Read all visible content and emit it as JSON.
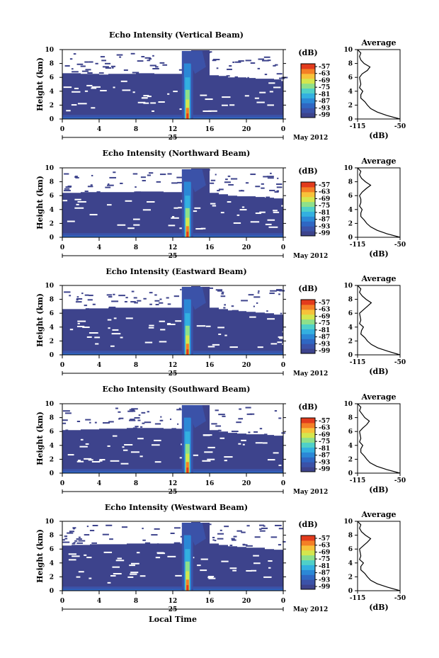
{
  "colors": {
    "background": "#3d438c",
    "scale": [
      "#3d438c",
      "#3b52a8",
      "#2f67c3",
      "#2b88d6",
      "#33b0e0",
      "#4fd0c8",
      "#8ee08a",
      "#d4e64e",
      "#f7c23a",
      "#f47f26",
      "#e23b1c"
    ]
  },
  "shared": {
    "xticks": [
      "0",
      "4",
      "8",
      "12",
      "16",
      "20",
      "0"
    ],
    "date_day": "25",
    "date_month": "May 2012",
    "xlabel": "Local Time",
    "ylabel": "Height (km)",
    "yticks": [
      "0",
      "2",
      "4",
      "6",
      "8",
      "10"
    ],
    "cbar_unit": "(dB)",
    "cbar_ticks": [
      "-57",
      "-63",
      "-69",
      "-75",
      "-81",
      "-87",
      "-93",
      "-99"
    ],
    "avg_title": "Average",
    "avg_xticks": [
      "-115",
      "-50"
    ],
    "avg_xlabel": "(dB)",
    "avg_yticks": [
      "0",
      "2",
      "4",
      "6",
      "8",
      "10"
    ]
  },
  "chart_data": [
    {
      "type": "heatmap",
      "title": "Echo Intensity (Vertical Beam)",
      "xlabel": "Local Time",
      "ylabel": "Height (km)",
      "xlim": [
        0,
        24
      ],
      "ylim": [
        0,
        10
      ],
      "colorbar": {
        "unit": "dB",
        "range": [
          -99,
          -57
        ]
      },
      "echo_top_km": [
        6.6,
        6.6,
        6.5,
        6.5,
        6.4,
        6.5,
        6.5,
        6.5,
        6.6,
        6.6,
        6.5,
        6.5,
        6.5,
        6.7,
        9.9,
        9.9,
        6.3,
        6.2,
        6.0,
        6.0,
        5.9,
        5.8,
        5.8,
        5.7
      ],
      "average_profile": {
        "xlim": [
          -115,
          -50
        ],
        "ylim": [
          0,
          10
        ],
        "height_km": [
          0,
          0.5,
          1,
          1.5,
          2,
          2.5,
          3,
          3.5,
          4,
          4.5,
          5,
          5.5,
          6,
          6.5,
          7,
          7.5,
          8,
          8.5,
          9,
          9.5,
          10
        ],
        "value_db": [
          -50,
          -70,
          -85,
          -95,
          -100,
          -104,
          -110,
          -110,
          -107,
          -112,
          -110,
          -111,
          -112,
          -108,
          -100,
          -96,
          -105,
          -110,
          -112,
          -110,
          -115
        ]
      }
    },
    {
      "type": "heatmap",
      "title": "Echo Intensity (Northward Beam)",
      "xlabel": "Local Time",
      "ylabel": "Height (km)",
      "xlim": [
        0,
        24
      ],
      "ylim": [
        0,
        10
      ],
      "colorbar": {
        "unit": "dB",
        "range": [
          -99,
          -57
        ]
      },
      "echo_top_km": [
        6.4,
        6.4,
        6.5,
        6.5,
        6.5,
        6.5,
        6.5,
        6.5,
        6.6,
        6.6,
        6.6,
        6.5,
        6.5,
        9.0,
        9.9,
        9.9,
        6.4,
        6.2,
        6.0,
        5.9,
        5.9,
        5.8,
        5.7,
        5.6
      ],
      "average_profile": {
        "xlim": [
          -115,
          -50
        ],
        "ylim": [
          0,
          10
        ],
        "height_km": [
          0,
          0.5,
          1,
          1.5,
          2,
          2.5,
          3,
          3.5,
          4,
          4.5,
          5,
          5.5,
          6,
          6.5,
          7,
          7.5,
          8,
          8.5,
          9,
          9.5,
          10
        ],
        "value_db": [
          -50,
          -70,
          -85,
          -95,
          -101,
          -105,
          -110,
          -110,
          -108,
          -112,
          -110,
          -110,
          -112,
          -108,
          -102,
          -95,
          -103,
          -109,
          -112,
          -110,
          -115
        ]
      }
    },
    {
      "type": "heatmap",
      "title": "Echo Intensity (Eastward Beam)",
      "xlabel": "Local Time",
      "ylabel": "Height (km)",
      "xlim": [
        0,
        24
      ],
      "ylim": [
        0,
        10
      ],
      "colorbar": {
        "unit": "dB",
        "range": [
          -99,
          -57
        ]
      },
      "echo_top_km": [
        6.6,
        6.6,
        6.6,
        6.7,
        6.7,
        6.8,
        6.8,
        6.8,
        6.8,
        6.8,
        6.8,
        6.8,
        6.8,
        9.5,
        9.9,
        9.8,
        6.8,
        6.6,
        6.4,
        6.3,
        6.2,
        6.1,
        6.0,
        5.8
      ],
      "average_profile": {
        "xlim": [
          -115,
          -50
        ],
        "ylim": [
          0,
          10
        ],
        "height_km": [
          0,
          0.5,
          1,
          1.5,
          2,
          2.5,
          3,
          3.5,
          4,
          4.5,
          5,
          5.5,
          6,
          6.5,
          7,
          7.5,
          8,
          8.5,
          9,
          9.5,
          10
        ],
        "value_db": [
          -50,
          -68,
          -84,
          -94,
          -100,
          -104,
          -110,
          -109,
          -106,
          -112,
          -110,
          -111,
          -112,
          -106,
          -100,
          -94,
          -102,
          -108,
          -112,
          -110,
          -115
        ]
      }
    },
    {
      "type": "heatmap",
      "title": "Echo Intensity (Southward Beam)",
      "xlabel": "Local Time",
      "ylabel": "Height (km)",
      "xlim": [
        0,
        24
      ],
      "ylim": [
        0,
        10
      ],
      "colorbar": {
        "unit": "dB",
        "range": [
          -99,
          -57
        ]
      },
      "echo_top_km": [
        6.2,
        6.2,
        6.3,
        6.3,
        6.4,
        6.4,
        6.4,
        6.5,
        6.5,
        6.5,
        6.5,
        6.4,
        6.4,
        9.3,
        9.8,
        9.8,
        6.2,
        6.0,
        5.8,
        5.7,
        5.6,
        5.6,
        5.5,
        5.4
      ],
      "average_profile": {
        "xlim": [
          -115,
          -50
        ],
        "ylim": [
          0,
          10
        ],
        "height_km": [
          0,
          0.5,
          1,
          1.5,
          2,
          2.5,
          3,
          3.5,
          4,
          4.5,
          5,
          5.5,
          6,
          6.5,
          7,
          7.5,
          8,
          8.5,
          9,
          9.5,
          10
        ],
        "value_db": [
          -50,
          -70,
          -86,
          -96,
          -101,
          -105,
          -110,
          -110,
          -107,
          -112,
          -110,
          -111,
          -112,
          -107,
          -101,
          -97,
          -104,
          -108,
          -112,
          -110,
          -115
        ]
      }
    },
    {
      "type": "heatmap",
      "title": "Echo Intensity (Westward Beam)",
      "xlabel": "Local Time",
      "ylabel": "Height (km)",
      "xlim": [
        0,
        24
      ],
      "ylim": [
        0,
        10
      ],
      "colorbar": {
        "unit": "dB",
        "range": [
          -99,
          -57
        ]
      },
      "echo_top_km": [
        6.5,
        6.6,
        6.6,
        6.7,
        6.7,
        6.7,
        6.7,
        6.8,
        6.8,
        6.8,
        6.8,
        6.8,
        6.8,
        9.6,
        9.9,
        9.8,
        6.8,
        6.6,
        6.4,
        6.3,
        6.2,
        6.2,
        6.0,
        5.9
      ],
      "average_profile": {
        "xlim": [
          -115,
          -50
        ],
        "ylim": [
          0,
          10
        ],
        "height_km": [
          0,
          0.5,
          1,
          1.5,
          2,
          2.5,
          3,
          3.5,
          4,
          4.5,
          5,
          5.5,
          6,
          6.5,
          7,
          7.5,
          8,
          8.5,
          9,
          9.5,
          10
        ],
        "value_db": [
          -50,
          -69,
          -85,
          -95,
          -100,
          -104,
          -110,
          -110,
          -106,
          -112,
          -110,
          -111,
          -112,
          -106,
          -100,
          -95,
          -103,
          -109,
          -112,
          -110,
          -115
        ]
      }
    }
  ]
}
